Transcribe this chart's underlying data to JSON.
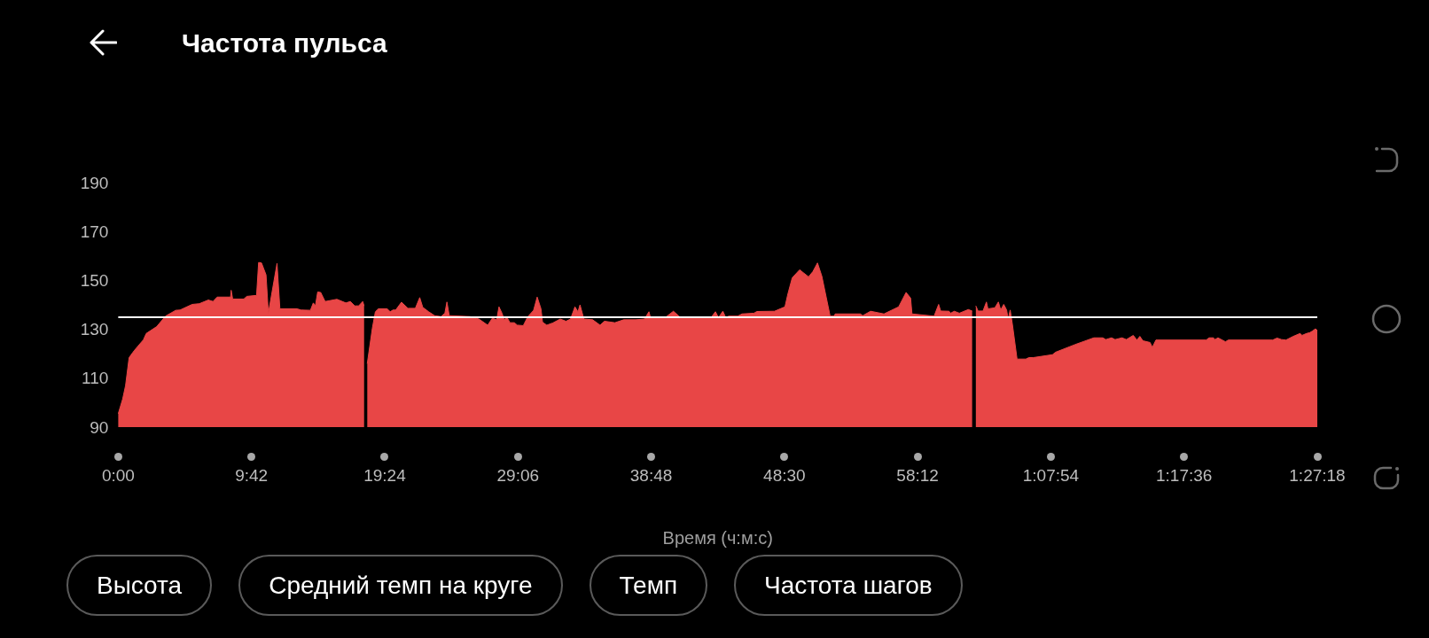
{
  "chart_data": {
    "type": "area",
    "title": "Частота пульса",
    "xlabel": "Время (ч:м:с)",
    "color": "#e84646",
    "x": [
      0,
      0.32,
      0.53,
      0.79,
      1.18,
      1.83,
      2.04,
      2.8,
      3.44,
      4.19,
      4.5,
      5.38,
      5.9,
      6.56,
      6.9,
      7.2,
      8.18,
      8.22,
      8.33,
      9.14,
      9.36,
      10.07,
      10.22,
      10.43,
      10.76,
      10.93,
      11.56,
      11.77,
      13.02,
      13.3,
      13.99,
      14.2,
      14.35,
      14.52,
      14.74,
      15.06,
      15.92,
      16.57,
      16.9,
      17.22,
      17.5,
      17.8,
      17.9,
      18.0,
      18.13,
      18.5,
      18.72,
      18.94,
      19.58,
      19.8,
      20.0,
      20.2,
      20.62,
      21.09,
      21.63,
      21.95,
      22.17,
      22.6,
      23.03,
      23.5,
      23.78,
      23.93,
      24.1,
      25.61,
      26.26,
      26.9,
      27.23,
      27.55,
      27.72,
      27.94,
      28.1,
      28.3,
      28.52,
      28.84,
      29.05,
      29.49,
      29.81,
      30.24,
      30.5,
      30.78,
      30.89,
      31.2,
      31.64,
      32.18,
      32.6,
      32.93,
      33.25,
      33.47,
      33.62,
      33.9,
      34.54,
      35.08,
      35.4,
      36.16,
      36.8,
      37.67,
      38.31,
      38.64,
      38.75,
      39.82,
      40.42,
      40.94,
      43.16,
      43.48,
      43.7,
      44.02,
      44.23,
      44.45,
      45.1,
      45.42,
      46.28,
      46.5,
      47.78,
      48.54,
      48.75,
      49.07,
      49.61,
      50.26,
      50.58,
      50.91,
      51.23,
      51.83,
      52.1,
      52.2,
      54.03,
      54.2,
      54.78,
      55.75,
      56.82,
      57.36,
      57.69,
      57.79,
      59.4,
      59.73,
      59.88,
      60.49,
      60.6,
      60.87,
      61.24,
      61.89,
      62.17,
      62.3,
      62.44,
      62.6,
      62.96,
      63.21,
      63.32,
      63.82,
      64.08,
      64.25,
      64.47,
      64.68,
      64.79,
      64.94,
      65.11,
      65.44,
      66.08,
      66.3,
      66.62,
      68.02,
      68.24,
      69.74,
      71.03,
      71.68,
      71.9,
      72.32,
      72.58,
      73.08,
      73.4,
      73.9,
      74.17,
      74.38,
      74.6,
      75.12,
      75.29,
      75.55,
      79.21,
      79.42,
      79.74,
      79.85,
      80.07,
      80.61,
      80.82,
      84.05,
      84.37,
      84.69,
      85.02,
      85.55,
      86.05,
      86.19,
      86.52,
      86.74,
      86.95,
      87.17,
      87.3
    ],
    "values": [
      95.5,
      101.5,
      107,
      118.5,
      121.5,
      125.8,
      128.4,
      131.2,
      135.5,
      137.9,
      138,
      140.3,
      140.6,
      142.1,
      141.5,
      143.3,
      143.3,
      146.1,
      142.5,
      142.5,
      143.6,
      144,
      157.5,
      157.3,
      152.4,
      136.7,
      157.1,
      138.5,
      138.5,
      138,
      137.9,
      140.9,
      139.7,
      145.4,
      145.2,
      141.5,
      142.4,
      140.9,
      141.5,
      139.7,
      139.7,
      141.5,
      139.7,
      null,
      116,
      130.6,
      137.3,
      138.5,
      138.5,
      137.3,
      138,
      138,
      141.2,
      138.7,
      138.7,
      143.1,
      139.1,
      137.3,
      135.7,
      135.3,
      136.7,
      141.3,
      135.7,
      135.3,
      134.3,
      131.8,
      134.6,
      134,
      139.3,
      136.7,
      134,
      135,
      132.8,
      132.8,
      131.8,
      131.6,
      135.2,
      137.9,
      143.3,
      138.5,
      133,
      131.8,
      132.7,
      134.3,
      133.4,
      134.3,
      139.3,
      137.3,
      140.1,
      134.3,
      134,
      131.8,
      133.4,
      132.8,
      134,
      134,
      134.3,
      137.3,
      134.9,
      134.9,
      137.5,
      134.9,
      134.9,
      137.3,
      134.9,
      137.5,
      134.9,
      135.5,
      135.5,
      136.4,
      136.7,
      137.4,
      137.5,
      139.3,
      144.5,
      151.2,
      154.5,
      151.6,
      153.8,
      157.3,
      151.8,
      135.5,
      135.5,
      136.4,
      136.4,
      135.7,
      137.5,
      136.4,
      139.3,
      145.2,
      142.9,
      136.4,
      135.5,
      140.3,
      137.6,
      137.5,
      136.7,
      137.5,
      136.7,
      138.2,
      137.6,
      null,
      139.7,
      137.6,
      137.6,
      141.3,
      138.5,
      138.9,
      141.3,
      138,
      140.3,
      138,
      134.3,
      138,
      131.8,
      117.9,
      117.9,
      118.5,
      118.5,
      119.7,
      120.7,
      124,
      126.6,
      126.6,
      125.9,
      126.6,
      125.9,
      126.6,
      125.9,
      127.6,
      125.7,
      127.2,
      125.4,
      124.7,
      122.7,
      125.7,
      125.7,
      126.6,
      126.6,
      125.9,
      126.6,
      125,
      125.7,
      125.7,
      126.5,
      125.9,
      125.7,
      127.2,
      128.4,
      127.6,
      128.4,
      128.7,
      129.4,
      130.3,
      129.6
    ],
    "xlim": [
      0,
      87.3
    ],
    "xticks": [
      {
        "value": 0,
        "label": "0:00"
      },
      {
        "value": 9.7,
        "label": "9:42"
      },
      {
        "value": 19.4,
        "label": "19:24"
      },
      {
        "value": 29.1,
        "label": "29:06"
      },
      {
        "value": 38.8,
        "label": "38:48"
      },
      {
        "value": 48.5,
        "label": "48:30"
      },
      {
        "value": 58.2,
        "label": "58:12"
      },
      {
        "value": 67.9,
        "label": "1:07:54"
      },
      {
        "value": 77.6,
        "label": "1:17:36"
      },
      {
        "value": 87.3,
        "label": "1:27:18"
      }
    ],
    "ylim": [
      90,
      190
    ],
    "yticks": [
      90,
      110,
      130,
      150,
      170,
      190
    ],
    "ref_lines": [
      {
        "axis": "y",
        "value": 135,
        "color": "#ffffff"
      }
    ],
    "annotations": [
      "Высота",
      "Средний темп на круге",
      "Темп",
      "Частота шагов"
    ]
  }
}
